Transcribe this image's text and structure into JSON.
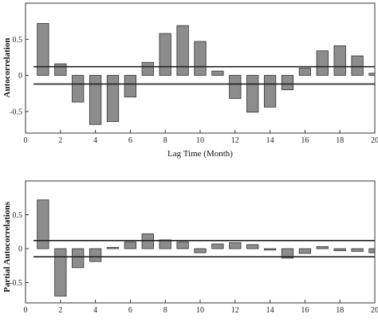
{
  "chart_data": [
    {
      "type": "bar",
      "ylabel": "Autocorrelation",
      "xlabel": "Lag Time (Month)",
      "xlim": [
        0,
        20
      ],
      "ylim": [
        -0.8,
        1
      ],
      "xticks": [
        "0",
        "2",
        "4",
        "6",
        "8",
        "10",
        "12",
        "14",
        "16",
        "18",
        "20"
      ],
      "yticks": [
        "-0.5",
        "0",
        "0.5"
      ],
      "lags": [
        1,
        2,
        3,
        4,
        5,
        6,
        7,
        8,
        9,
        10,
        11,
        12,
        13,
        14,
        15,
        16,
        17,
        18,
        19,
        20
      ],
      "values": [
        0.72,
        0.16,
        -0.37,
        -0.68,
        -0.64,
        -0.3,
        0.18,
        0.58,
        0.69,
        0.47,
        0.06,
        -0.32,
        -0.51,
        -0.44,
        -0.2,
        0.1,
        0.34,
        0.41,
        0.27,
        0.03
      ],
      "confidence_bounds": [
        0.12,
        -0.12
      ]
    },
    {
      "type": "bar",
      "ylabel": "Partial Autocorrelations",
      "xlabel": "",
      "xlim": [
        0,
        20
      ],
      "ylim": [
        -0.8,
        1
      ],
      "xticks": [
        "0",
        "2",
        "4",
        "6",
        "8",
        "10",
        "12",
        "14",
        "16",
        "18",
        "20"
      ],
      "yticks": [
        "-0.5",
        "0",
        "0.5"
      ],
      "lags": [
        1,
        2,
        3,
        4,
        5,
        6,
        7,
        8,
        9,
        10,
        11,
        12,
        13,
        14,
        15,
        16,
        17,
        18,
        19,
        20
      ],
      "values": [
        0.72,
        -0.7,
        -0.28,
        -0.19,
        0.02,
        0.1,
        0.22,
        0.13,
        0.1,
        -0.06,
        0.07,
        0.09,
        0.06,
        -0.02,
        -0.14,
        -0.07,
        0.03,
        -0.03,
        -0.04,
        -0.06
      ],
      "confidence_bounds": [
        0.12,
        -0.12
      ]
    }
  ]
}
